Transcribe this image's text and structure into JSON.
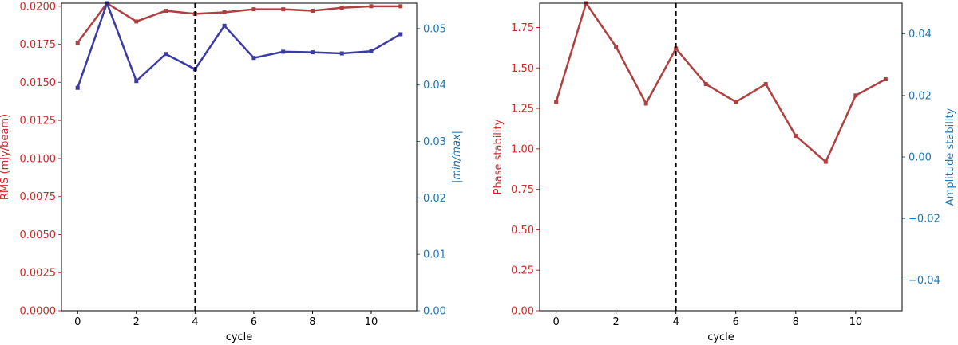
{
  "colors": {
    "left_axis": "#d62728",
    "right_axis": "#1f77b4",
    "series_red": "#b04040",
    "series_blue": "#3a3aa8",
    "marker_line": "#000000"
  },
  "chart_data": [
    {
      "type": "line",
      "xlabel": "cycle",
      "ylabel_left": "RMS (mJy/beam)",
      "ylabel_right": "|min/max|",
      "xlim": [
        -0.55,
        11.55
      ],
      "ylim_left": [
        0,
        0.0202
      ],
      "ylim_right": [
        0,
        0.0545
      ],
      "xticks": [
        0,
        2,
        4,
        6,
        8,
        10
      ],
      "yticks_left": [
        "0.0000",
        "0.0025",
        "0.0050",
        "0.0075",
        "0.0100",
        "0.0125",
        "0.0150",
        "0.0175",
        "0.0200"
      ],
      "yticks_right": [
        "0.00",
        "0.01",
        "0.02",
        "0.03",
        "0.04",
        "0.05"
      ],
      "vline_x": 4,
      "x": [
        0,
        1,
        2,
        3,
        4,
        5,
        6,
        7,
        8,
        9,
        10,
        11
      ],
      "series": [
        {
          "axis": "left",
          "color_key": "series_red",
          "values": [
            0.0176,
            0.0202,
            0.019,
            0.0197,
            0.0195,
            0.0196,
            0.0198,
            0.0198,
            0.0197,
            0.0199,
            0.02,
            0.02
          ]
        },
        {
          "axis": "right",
          "color_key": "series_blue",
          "values": [
            0.0395,
            0.0545,
            0.0407,
            0.0455,
            0.0428,
            0.0505,
            0.0448,
            0.0459,
            0.0458,
            0.0456,
            0.046,
            0.049
          ]
        }
      ]
    },
    {
      "type": "line",
      "xlabel": "cycle",
      "ylabel_left": "Phase stability",
      "ylabel_right": "Amplitude stability",
      "xlim": [
        -0.55,
        11.55
      ],
      "ylim_left": [
        0,
        1.9
      ],
      "ylim_right": [
        -0.05,
        0.05
      ],
      "xticks": [
        0,
        2,
        4,
        6,
        8,
        10
      ],
      "yticks_left": [
        "0.00",
        "0.25",
        "0.50",
        "0.75",
        "1.00",
        "1.25",
        "1.50",
        "1.75"
      ],
      "yticks_right": [
        "−0.04",
        "−0.02",
        "0.00",
        "0.02",
        "0.04"
      ],
      "vline_x": 4,
      "x": [
        0,
        1,
        2,
        3,
        4,
        5,
        6,
        7,
        8,
        9,
        10,
        11
      ],
      "series": [
        {
          "axis": "left",
          "color_key": "series_red",
          "values": [
            1.29,
            1.9,
            1.63,
            1.28,
            1.62,
            1.4,
            1.29,
            1.4,
            1.08,
            0.92,
            1.33,
            1.43
          ]
        }
      ]
    }
  ]
}
